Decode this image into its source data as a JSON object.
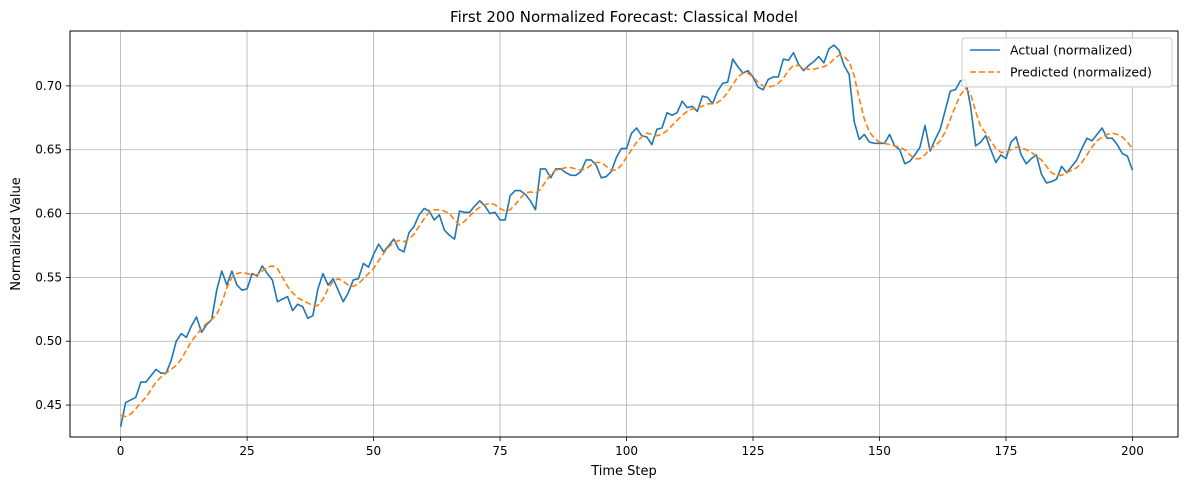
{
  "chart_data": {
    "type": "line",
    "title": "First 200 Normalized Forecast: Classical Model",
    "xlabel": "Time Step",
    "ylabel": "Normalized Value",
    "xlim": [
      -10,
      209
    ],
    "ylim": [
      0.425,
      0.743
    ],
    "xticks": [
      0,
      25,
      50,
      75,
      100,
      125,
      150,
      175,
      200
    ],
    "yticks": [
      0.45,
      0.5,
      0.55,
      0.6,
      0.65,
      0.7
    ],
    "ytick_labels": [
      "0.45",
      "0.50",
      "0.55",
      "0.60",
      "0.65",
      "0.70"
    ],
    "grid": true,
    "legend": "top-right",
    "series": [
      {
        "name": "Actual (normalized)",
        "color": "#1f77b4",
        "dash": "solid",
        "values": [
          0.433,
          0.452,
          0.454,
          0.456,
          0.468,
          0.468,
          0.473,
          0.478,
          0.475,
          0.475,
          0.485,
          0.5,
          0.506,
          0.503,
          0.512,
          0.519,
          0.507,
          0.513,
          0.517,
          0.54,
          0.555,
          0.544,
          0.555,
          0.544,
          0.54,
          0.541,
          0.553,
          0.551,
          0.559,
          0.553,
          0.548,
          0.531,
          0.533,
          0.535,
          0.524,
          0.529,
          0.527,
          0.518,
          0.52,
          0.541,
          0.553,
          0.544,
          0.549,
          0.54,
          0.531,
          0.538,
          0.548,
          0.549,
          0.561,
          0.558,
          0.568,
          0.576,
          0.57,
          0.575,
          0.58,
          0.572,
          0.57,
          0.585,
          0.59,
          0.599,
          0.604,
          0.602,
          0.595,
          0.599,
          0.587,
          0.583,
          0.58,
          0.602,
          0.601,
          0.601,
          0.606,
          0.61,
          0.606,
          0.6,
          0.601,
          0.595,
          0.595,
          0.614,
          0.618,
          0.618,
          0.615,
          0.61,
          0.603,
          0.635,
          0.635,
          0.628,
          0.635,
          0.635,
          0.632,
          0.63,
          0.63,
          0.633,
          0.642,
          0.642,
          0.638,
          0.628,
          0.629,
          0.633,
          0.644,
          0.651,
          0.651,
          0.663,
          0.667,
          0.661,
          0.66,
          0.654,
          0.666,
          0.667,
          0.679,
          0.677,
          0.679,
          0.688,
          0.683,
          0.684,
          0.68,
          0.692,
          0.691,
          0.686,
          0.696,
          0.702,
          0.703,
          0.721,
          0.715,
          0.71,
          0.712,
          0.707,
          0.699,
          0.697,
          0.705,
          0.707,
          0.707,
          0.721,
          0.72,
          0.726,
          0.717,
          0.712,
          0.716,
          0.719,
          0.723,
          0.718,
          0.729,
          0.732,
          0.728,
          0.716,
          0.709,
          0.672,
          0.658,
          0.662,
          0.656,
          0.655,
          0.655,
          0.655,
          0.662,
          0.653,
          0.65,
          0.639,
          0.641,
          0.646,
          0.652,
          0.669,
          0.649,
          0.658,
          0.666,
          0.681,
          0.696,
          0.697,
          0.704,
          0.705,
          0.684,
          0.653,
          0.656,
          0.661,
          0.65,
          0.64,
          0.646,
          0.643,
          0.656,
          0.66,
          0.646,
          0.639,
          0.643,
          0.646,
          0.631,
          0.624,
          0.625,
          0.627,
          0.637,
          0.632,
          0.637,
          0.642,
          0.651,
          0.659,
          0.657,
          0.662,
          0.667,
          0.659,
          0.659,
          0.654,
          0.647,
          0.645,
          0.634
        ]
      },
      {
        "name": "Predicted (normalized)",
        "color": "#ff7f0e",
        "dash": "dashed",
        "values": [
          0.442,
          0.441,
          0.443,
          0.447,
          0.452,
          0.456,
          0.462,
          0.468,
          0.472,
          0.475,
          0.478,
          0.481,
          0.486,
          0.493,
          0.5,
          0.505,
          0.51,
          0.514,
          0.517,
          0.521,
          0.53,
          0.542,
          0.55,
          0.553,
          0.554,
          0.553,
          0.552,
          0.552,
          0.555,
          0.558,
          0.559,
          0.557,
          0.55,
          0.543,
          0.538,
          0.534,
          0.532,
          0.53,
          0.528,
          0.528,
          0.533,
          0.541,
          0.547,
          0.549,
          0.547,
          0.544,
          0.543,
          0.545,
          0.549,
          0.553,
          0.557,
          0.563,
          0.569,
          0.574,
          0.577,
          0.579,
          0.578,
          0.58,
          0.584,
          0.59,
          0.596,
          0.601,
          0.603,
          0.603,
          0.602,
          0.6,
          0.595,
          0.591,
          0.594,
          0.598,
          0.602,
          0.605,
          0.607,
          0.608,
          0.607,
          0.604,
          0.602,
          0.603,
          0.607,
          0.612,
          0.616,
          0.617,
          0.616,
          0.619,
          0.625,
          0.631,
          0.634,
          0.635,
          0.636,
          0.636,
          0.635,
          0.634,
          0.635,
          0.638,
          0.64,
          0.64,
          0.637,
          0.634,
          0.634,
          0.638,
          0.644,
          0.65,
          0.656,
          0.66,
          0.663,
          0.662,
          0.661,
          0.662,
          0.665,
          0.669,
          0.673,
          0.677,
          0.68,
          0.682,
          0.683,
          0.684,
          0.686,
          0.686,
          0.687,
          0.69,
          0.695,
          0.701,
          0.707,
          0.71,
          0.71,
          0.707,
          0.703,
          0.7,
          0.699,
          0.7,
          0.702,
          0.706,
          0.712,
          0.716,
          0.716,
          0.714,
          0.713,
          0.713,
          0.714,
          0.715,
          0.717,
          0.721,
          0.724,
          0.723,
          0.719,
          0.708,
          0.69,
          0.674,
          0.664,
          0.659,
          0.656,
          0.655,
          0.654,
          0.653,
          0.652,
          0.65,
          0.646,
          0.643,
          0.643,
          0.646,
          0.651,
          0.653,
          0.657,
          0.664,
          0.674,
          0.684,
          0.693,
          0.698,
          0.694,
          0.68,
          0.668,
          0.663,
          0.657,
          0.651,
          0.648,
          0.648,
          0.65,
          0.652,
          0.652,
          0.65,
          0.648,
          0.645,
          0.642,
          0.637,
          0.632,
          0.63,
          0.63,
          0.632,
          0.634,
          0.636,
          0.64,
          0.646,
          0.652,
          0.657,
          0.66,
          0.662,
          0.663,
          0.662,
          0.66,
          0.656,
          0.651
        ]
      }
    ]
  }
}
